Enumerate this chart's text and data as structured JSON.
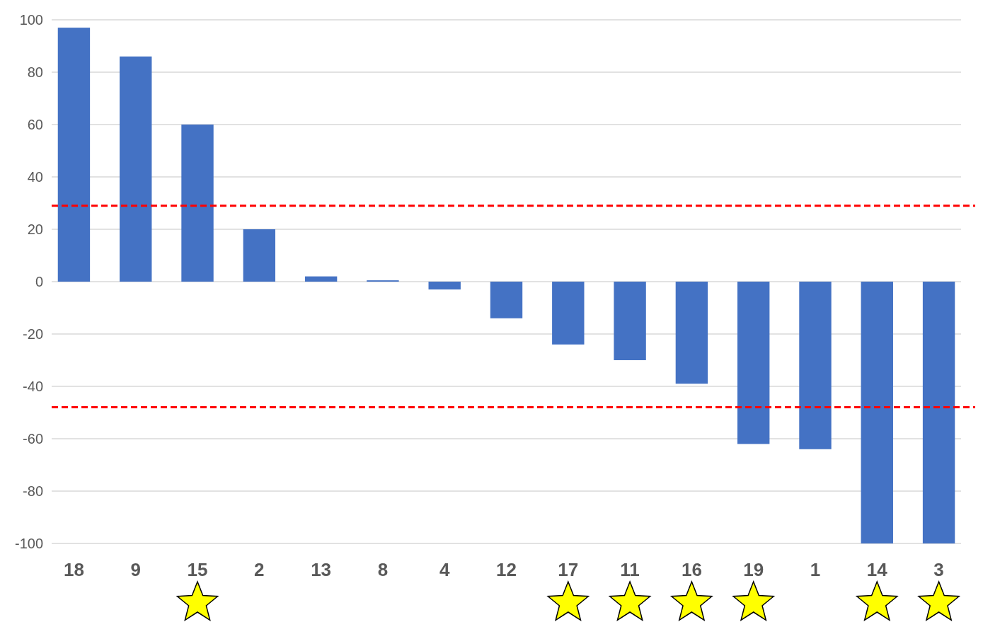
{
  "chart_data": {
    "type": "bar",
    "categories": [
      "18",
      "9",
      "15",
      "2",
      "13",
      "8",
      "4",
      "12",
      "17",
      "11",
      "16",
      "19",
      "1",
      "14",
      "3"
    ],
    "values": [
      97,
      86,
      60,
      20,
      2,
      0.5,
      -3,
      -14,
      -24,
      -30,
      -39,
      -62,
      -64,
      -100,
      -100
    ],
    "color": "#4472c4",
    "ylim": [
      -100,
      100
    ],
    "yticks": [
      -100,
      -80,
      -60,
      -40,
      -20,
      0,
      20,
      40,
      60,
      80,
      100
    ],
    "grid": "y",
    "ref_lines": [
      {
        "axis": "y",
        "value": 29,
        "color": "#ff0000",
        "line_style": "dashed"
      },
      {
        "axis": "y",
        "value": -48,
        "color": "#ff0000",
        "line_style": "dashed"
      }
    ]
  }
}
